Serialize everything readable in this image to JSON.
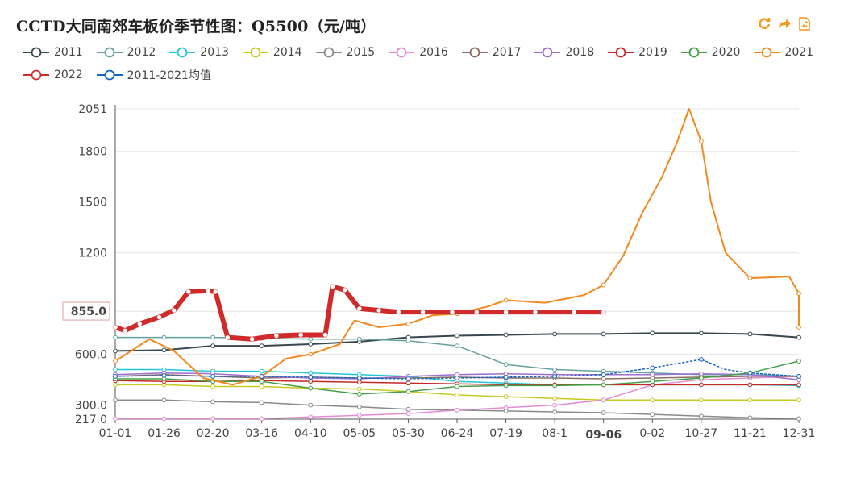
{
  "title": "CCTD大同南郊车板价季节性图：Q5500（元/吨）",
  "toolbar": {
    "icons": [
      "refresh-icon",
      "share-icon",
      "save-image-icon"
    ],
    "color": "#f29a1e"
  },
  "chart_data": {
    "type": "line",
    "title": "CCTD大同南郊车板价季节性图：Q5500（元/吨）",
    "xlabel": "",
    "ylabel": "",
    "x_ticks": [
      "01-01",
      "01-26",
      "02-20",
      "03-16",
      "04-10",
      "05-05",
      "05-30",
      "06-24",
      "07-19",
      "08-1",
      "09-06",
      "0-02",
      "10-27",
      "11-21",
      "12-31"
    ],
    "x_highlight": "09-06",
    "y_ticks": [
      "217.0",
      "300.0",
      "600.0",
      "855.0",
      "1200",
      "1500",
      "1800",
      "2051"
    ],
    "y_highlight": "855.0",
    "ylim": [
      217,
      2051
    ],
    "grid": true,
    "legend_position": "top",
    "series": [
      {
        "name": "2011",
        "color": "#37474f",
        "width": 2,
        "points": [
          [
            0,
            620
          ],
          [
            1,
            625
          ],
          [
            2,
            650
          ],
          [
            3,
            650
          ],
          [
            4,
            660
          ],
          [
            5,
            675
          ],
          [
            6,
            700
          ],
          [
            7,
            710
          ],
          [
            8,
            715
          ],
          [
            9,
            720
          ],
          [
            10,
            720
          ],
          [
            11,
            725
          ],
          [
            12,
            725
          ],
          [
            13,
            720
          ],
          [
            14,
            700
          ]
        ]
      },
      {
        "name": "2012",
        "color": "#64a0a0",
        "width": 1.5,
        "points": [
          [
            0,
            700
          ],
          [
            1,
            700
          ],
          [
            2,
            700
          ],
          [
            3,
            695
          ],
          [
            4,
            690
          ],
          [
            5,
            690
          ],
          [
            6,
            680
          ],
          [
            7,
            650
          ],
          [
            8,
            540
          ],
          [
            9,
            510
          ],
          [
            10,
            500
          ],
          [
            11,
            490
          ],
          [
            12,
            480
          ],
          [
            13,
            480
          ],
          [
            14,
            470
          ]
        ]
      },
      {
        "name": "2013",
        "color": "#22c7d6",
        "width": 1.5,
        "points": [
          [
            0,
            510
          ],
          [
            1,
            510
          ],
          [
            2,
            500
          ],
          [
            3,
            500
          ],
          [
            4,
            490
          ],
          [
            5,
            480
          ],
          [
            6,
            470
          ],
          [
            7,
            440
          ],
          [
            8,
            430
          ],
          [
            9,
            420
          ],
          [
            10,
            420
          ],
          [
            11,
            420
          ],
          [
            12,
            420
          ],
          [
            13,
            420
          ],
          [
            14,
            415
          ]
        ]
      },
      {
        "name": "2014",
        "color": "#c9c920",
        "width": 1.5,
        "points": [
          [
            0,
            420
          ],
          [
            1,
            420
          ],
          [
            2,
            410
          ],
          [
            3,
            410
          ],
          [
            4,
            400
          ],
          [
            5,
            395
          ],
          [
            6,
            380
          ],
          [
            7,
            360
          ],
          [
            8,
            350
          ],
          [
            9,
            340
          ],
          [
            10,
            330
          ],
          [
            11,
            330
          ],
          [
            12,
            330
          ],
          [
            13,
            330
          ],
          [
            14,
            330
          ]
        ]
      },
      {
        "name": "2015",
        "color": "#8a8a8a",
        "width": 1.5,
        "points": [
          [
            0,
            330
          ],
          [
            1,
            330
          ],
          [
            2,
            320
          ],
          [
            3,
            315
          ],
          [
            4,
            300
          ],
          [
            5,
            290
          ],
          [
            6,
            275
          ],
          [
            7,
            270
          ],
          [
            8,
            265
          ],
          [
            9,
            260
          ],
          [
            10,
            255
          ],
          [
            11,
            245
          ],
          [
            12,
            235
          ],
          [
            13,
            225
          ],
          [
            14,
            220
          ]
        ]
      },
      {
        "name": "2016",
        "color": "#e58bd6",
        "width": 1.5,
        "points": [
          [
            0,
            220
          ],
          [
            1,
            220
          ],
          [
            2,
            220
          ],
          [
            3,
            220
          ],
          [
            4,
            230
          ],
          [
            5,
            240
          ],
          [
            6,
            250
          ],
          [
            7,
            270
          ],
          [
            8,
            285
          ],
          [
            9,
            300
          ],
          [
            10,
            330
          ],
          [
            11,
            420
          ],
          [
            12,
            450
          ],
          [
            13,
            460
          ],
          [
            14,
            470
          ]
        ]
      },
      {
        "name": "2017",
        "color": "#8d6e63",
        "width": 1.5,
        "points": [
          [
            0,
            470
          ],
          [
            1,
            480
          ],
          [
            2,
            470
          ],
          [
            3,
            460
          ],
          [
            4,
            465
          ],
          [
            5,
            460
          ],
          [
            6,
            460
          ],
          [
            7,
            465
          ],
          [
            8,
            460
          ],
          [
            9,
            460
          ],
          [
            10,
            455
          ],
          [
            11,
            460
          ],
          [
            12,
            465
          ],
          [
            13,
            470
          ],
          [
            14,
            470
          ]
        ]
      },
      {
        "name": "2018",
        "color": "#9e6fd0",
        "width": 1.5,
        "points": [
          [
            0,
            480
          ],
          [
            1,
            490
          ],
          [
            2,
            485
          ],
          [
            3,
            470
          ],
          [
            4,
            460
          ],
          [
            5,
            455
          ],
          [
            6,
            470
          ],
          [
            7,
            480
          ],
          [
            8,
            485
          ],
          [
            9,
            480
          ],
          [
            10,
            480
          ],
          [
            11,
            480
          ],
          [
            12,
            485
          ],
          [
            13,
            480
          ],
          [
            14,
            450
          ]
        ]
      },
      {
        "name": "2019",
        "color": "#c62828",
        "width": 1.5,
        "points": [
          [
            0,
            445
          ],
          [
            1,
            440
          ],
          [
            2,
            440
          ],
          [
            3,
            445
          ],
          [
            4,
            440
          ],
          [
            5,
            435
          ],
          [
            6,
            430
          ],
          [
            7,
            425
          ],
          [
            8,
            420
          ],
          [
            9,
            420
          ],
          [
            10,
            420
          ],
          [
            11,
            420
          ],
          [
            12,
            420
          ],
          [
            13,
            420
          ],
          [
            14,
            420
          ]
        ]
      },
      {
        "name": "2020",
        "color": "#43a047",
        "width": 1.5,
        "points": [
          [
            0,
            455
          ],
          [
            1,
            455
          ],
          [
            2,
            440
          ],
          [
            3,
            440
          ],
          [
            4,
            400
          ],
          [
            5,
            365
          ],
          [
            6,
            380
          ],
          [
            7,
            410
          ],
          [
            8,
            415
          ],
          [
            9,
            415
          ],
          [
            10,
            420
          ],
          [
            11,
            440
          ],
          [
            12,
            460
          ],
          [
            13,
            490
          ],
          [
            14,
            560
          ]
        ]
      },
      {
        "name": "2021",
        "color": "#f08a1e",
        "width": 2,
        "points": [
          [
            0,
            560
          ],
          [
            0.7,
            690
          ],
          [
            1.2,
            620
          ],
          [
            1.8,
            460
          ],
          [
            2.4,
            420
          ],
          [
            3,
            470
          ],
          [
            3.5,
            575
          ],
          [
            4,
            600
          ],
          [
            4.6,
            660
          ],
          [
            4.9,
            800
          ],
          [
            5.4,
            760
          ],
          [
            6,
            780
          ],
          [
            6.5,
            830
          ],
          [
            7,
            840
          ],
          [
            7.6,
            880
          ],
          [
            8,
            920
          ],
          [
            8.8,
            905
          ],
          [
            9.6,
            950
          ],
          [
            10,
            1010
          ],
          [
            10.4,
            1180
          ],
          [
            10.8,
            1440
          ],
          [
            11.2,
            1650
          ],
          [
            11.5,
            1850
          ],
          [
            11.75,
            2051
          ],
          [
            12,
            1860
          ],
          [
            12.2,
            1500
          ],
          [
            12.5,
            1200
          ],
          [
            13,
            1050
          ],
          [
            13.4,
            1055
          ],
          [
            13.8,
            1060
          ],
          [
            14,
            960
          ],
          [
            14.3,
            900
          ],
          [
            14.6,
            820
          ],
          [
            15,
            760
          ]
        ]
      },
      {
        "name": "2022",
        "color": "#d02a2a",
        "width": 6,
        "points": [
          [
            0,
            760
          ],
          [
            0.2,
            740
          ],
          [
            0.5,
            780
          ],
          [
            0.9,
            820
          ],
          [
            1.2,
            860
          ],
          [
            1.5,
            970
          ],
          [
            1.9,
            975
          ],
          [
            2.05,
            970
          ],
          [
            2.3,
            700
          ],
          [
            2.8,
            690
          ],
          [
            3.3,
            710
          ],
          [
            3.8,
            715
          ],
          [
            4.3,
            715
          ],
          [
            4.45,
            1000
          ],
          [
            4.7,
            980
          ],
          [
            5,
            870
          ],
          [
            5.4,
            860
          ],
          [
            5.8,
            850
          ],
          [
            6.3,
            850
          ],
          [
            6.9,
            850
          ],
          [
            7.4,
            850
          ],
          [
            8,
            850
          ],
          [
            8.6,
            850
          ],
          [
            9.4,
            850
          ],
          [
            10,
            850
          ]
        ]
      },
      {
        "name": "2011-2021均值",
        "color": "#1565c0",
        "width": 1.5,
        "dotted": true,
        "points": [
          [
            0,
            470
          ],
          [
            1,
            475
          ],
          [
            2,
            470
          ],
          [
            3,
            470
          ],
          [
            4,
            465
          ],
          [
            5,
            460
          ],
          [
            6,
            455
          ],
          [
            7,
            460
          ],
          [
            8,
            465
          ],
          [
            9,
            470
          ],
          [
            10,
            480
          ],
          [
            11,
            520
          ],
          [
            12,
            570
          ],
          [
            12.5,
            510
          ],
          [
            13,
            490
          ],
          [
            14,
            470
          ]
        ]
      }
    ]
  }
}
